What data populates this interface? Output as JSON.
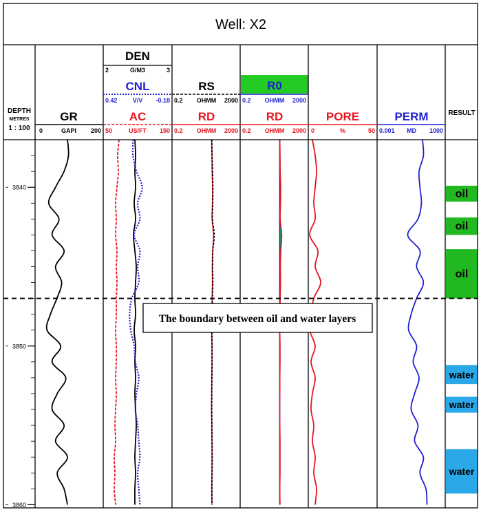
{
  "title": "Well: X2",
  "depth_track": {
    "label": "DEPTH",
    "units": "METRES",
    "scale": "1 : 100",
    "ticks": [
      {
        "value": 3840,
        "label": "3840"
      },
      {
        "value": 3850,
        "label": "3850"
      },
      {
        "value": 3860,
        "label": "3860"
      }
    ]
  },
  "headers": {
    "gr": {
      "name": "GR",
      "min": "0",
      "unit": "GAPI",
      "max": "200"
    },
    "den": {
      "name": "DEN",
      "min": "2",
      "unit": "G/M3",
      "max": "3"
    },
    "cnl": {
      "name": "CNL",
      "min": "0.42",
      "unit": "V/V",
      "max": "-0.18"
    },
    "ac": {
      "name": "AC",
      "min": "50",
      "unit": "US/FT",
      "max": "150"
    },
    "rs": {
      "name": "RS",
      "min": "0.2",
      "unit": "OHMM",
      "max": "2000"
    },
    "rd1": {
      "name": "RD",
      "min": "0.2",
      "unit": "OHMM",
      "max": "2000"
    },
    "r0": {
      "name": "R0",
      "min": "0.2",
      "unit": "OHMM",
      "max": "2000"
    },
    "rd2": {
      "name": "RD",
      "min": "0.2",
      "unit": "OHMM",
      "max": "2000"
    },
    "pore": {
      "name": "PORE",
      "min": "0",
      "unit": "%",
      "max": "50"
    },
    "perm": {
      "name": "PERM",
      "min": "0.001",
      "unit": "MD",
      "max": "1000"
    },
    "result": {
      "name": "RESULT"
    }
  },
  "annotation": "The boundary between oil and water layers",
  "colors": {
    "gr": "#000000",
    "den": "#000000",
    "cnl": "#1f1fd0",
    "ac": "#e8141e",
    "rs": "#000000",
    "rd": "#e8141e",
    "r0": "#1f1fd0",
    "pore": "#e8141e",
    "perm": "#1f1fd0",
    "oil_fill": "#22b822",
    "water_fill": "#2aa8e8",
    "r0_header": "#22cc22"
  },
  "chart_data": {
    "type": "line",
    "depth_range": [
      3837.0,
      3860.2
    ],
    "depth_unit": "m",
    "oil_water_contact": 3847.0,
    "zones": [
      {
        "top": 3839.9,
        "bottom": 3840.9,
        "result": "oil"
      },
      {
        "top": 3841.9,
        "bottom": 3843.0,
        "result": "oil"
      },
      {
        "top": 3843.9,
        "bottom": 3847.0,
        "result": "oil"
      },
      {
        "top": 3851.2,
        "bottom": 3852.4,
        "result": "water"
      },
      {
        "top": 3853.2,
        "bottom": 3854.2,
        "result": "water"
      },
      {
        "top": 3856.5,
        "bottom": 3859.3,
        "result": "water"
      }
    ],
    "curves": {
      "depth": [
        3837.0,
        3838.0,
        3839.0,
        3840.0,
        3841.0,
        3842.0,
        3843.0,
        3844.0,
        3845.0,
        3846.0,
        3847.0,
        3848.0,
        3849.0,
        3850.0,
        3851.0,
        3852.0,
        3853.0,
        3854.0,
        3855.0,
        3856.0,
        3857.0,
        3858.0,
        3859.0,
        3860.0
      ],
      "GR": [
        95,
        98,
        85,
        60,
        40,
        70,
        50,
        85,
        60,
        78,
        64,
        45,
        35,
        75,
        50,
        90,
        65,
        50,
        85,
        60,
        95,
        65,
        85,
        95
      ],
      "DEN": [
        2.46,
        2.47,
        2.46,
        2.47,
        2.45,
        2.47,
        2.44,
        2.46,
        2.48,
        2.47,
        2.46,
        2.47,
        2.45,
        2.47,
        2.46,
        2.47,
        2.46,
        2.47,
        2.48,
        2.47,
        2.46,
        2.47,
        2.46,
        2.46
      ],
      "CNL": [
        0.16,
        0.16,
        0.13,
        0.08,
        0.12,
        0.1,
        0.15,
        0.1,
        0.12,
        0.11,
        0.17,
        0.19,
        0.18,
        0.15,
        0.14,
        0.11,
        0.13,
        0.14,
        0.12,
        0.11,
        0.1,
        0.12,
        0.11,
        0.1
      ],
      "AC": [
        73,
        71,
        72,
        70,
        68,
        69,
        68,
        70,
        69,
        70,
        69,
        69,
        68,
        69,
        69,
        68,
        69,
        68,
        67,
        68,
        66,
        67,
        66,
        68
      ],
      "RS": [
        43,
        45,
        48,
        50,
        49,
        47,
        60,
        50,
        48,
        50,
        47,
        45,
        44,
        45,
        45,
        44,
        43,
        43,
        44,
        45,
        46,
        45,
        44,
        45
      ],
      "RD": [
        43,
        44,
        45,
        48,
        47,
        45,
        55,
        49,
        46,
        47,
        45,
        44,
        43,
        44,
        44,
        43,
        43,
        42,
        43,
        44,
        44,
        44,
        43,
        44
      ],
      "R0": [
        42,
        42,
        42,
        42,
        42,
        42,
        42,
        42,
        42,
        42,
        42,
        42,
        42,
        42,
        42,
        42,
        42,
        42,
        42,
        42,
        42,
        42,
        42,
        42
      ],
      "PORE": [
        3,
        5,
        6,
        5,
        4,
        5,
        1,
        7,
        5,
        9,
        4,
        2,
        1,
        5,
        2,
        5,
        3,
        2,
        4,
        3,
        5,
        4,
        6,
        5
      ],
      "PERM": [
        10,
        12,
        5,
        6,
        8,
        4,
        0.5,
        6,
        3,
        12,
        3,
        1,
        0.6,
        3,
        1.5,
        5,
        2,
        1,
        4,
        2,
        12,
        6,
        20,
        25
      ]
    }
  }
}
